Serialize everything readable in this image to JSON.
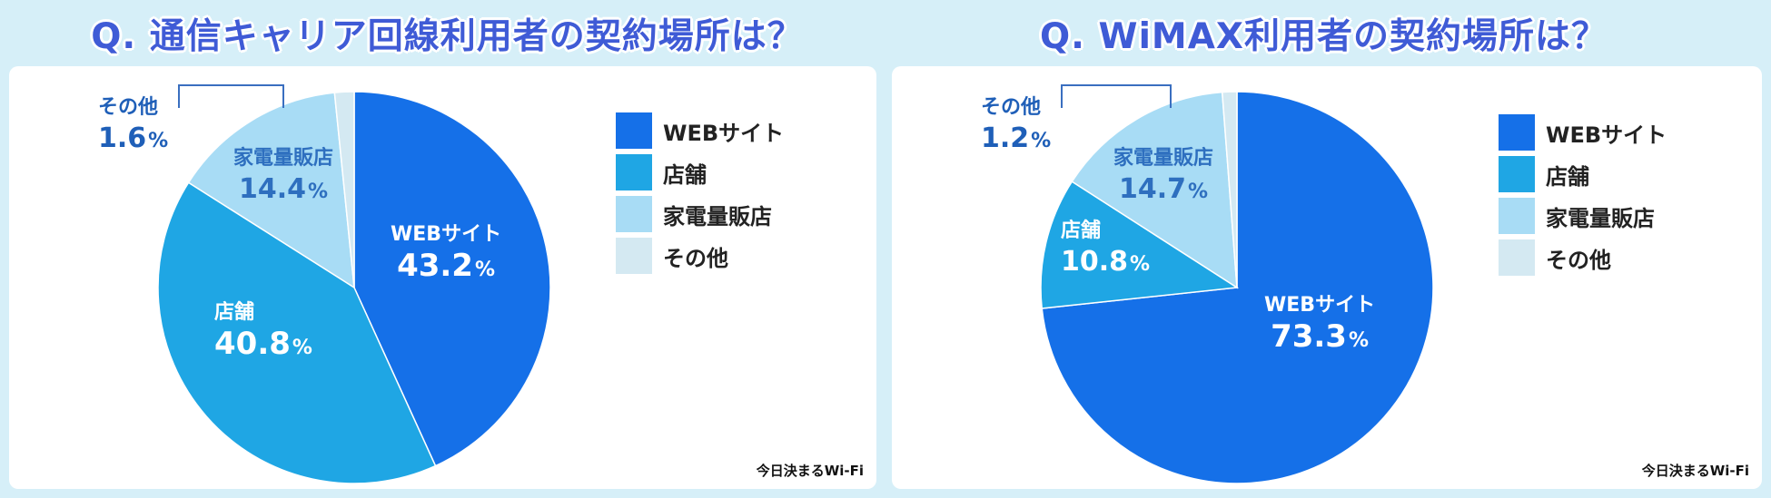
{
  "credit": "今日決まるWi-Fi",
  "colors": {
    "web": "#1570e8",
    "store": "#1fa6e4",
    "electronics": "#a8dcf5",
    "other": "#d4e9f2"
  },
  "legend": [
    "WEBサイト",
    "店舗",
    "家電量販店",
    "その他"
  ],
  "chart_data": [
    {
      "type": "pie",
      "title": "Q. 通信キャリア回線利用者の契約場所は？",
      "categories": [
        "WEBサイト",
        "店舗",
        "家電量販店",
        "その他"
      ],
      "values": [
        43.2,
        40.8,
        14.4,
        1.6
      ],
      "value_labels": [
        "43.2",
        "40.8",
        "14.4",
        "1.6"
      ],
      "unit": "%",
      "legend_position": "right"
    },
    {
      "type": "pie",
      "title": "Q. WiMAX利用者の契約場所は？",
      "categories": [
        "WEBサイト",
        "店舗",
        "家電量販店",
        "その他"
      ],
      "values": [
        73.3,
        10.8,
        14.7,
        1.2
      ],
      "value_labels": [
        "73.3",
        "10.8",
        "14.7",
        "1.2"
      ],
      "unit": "%",
      "legend_position": "right"
    }
  ]
}
